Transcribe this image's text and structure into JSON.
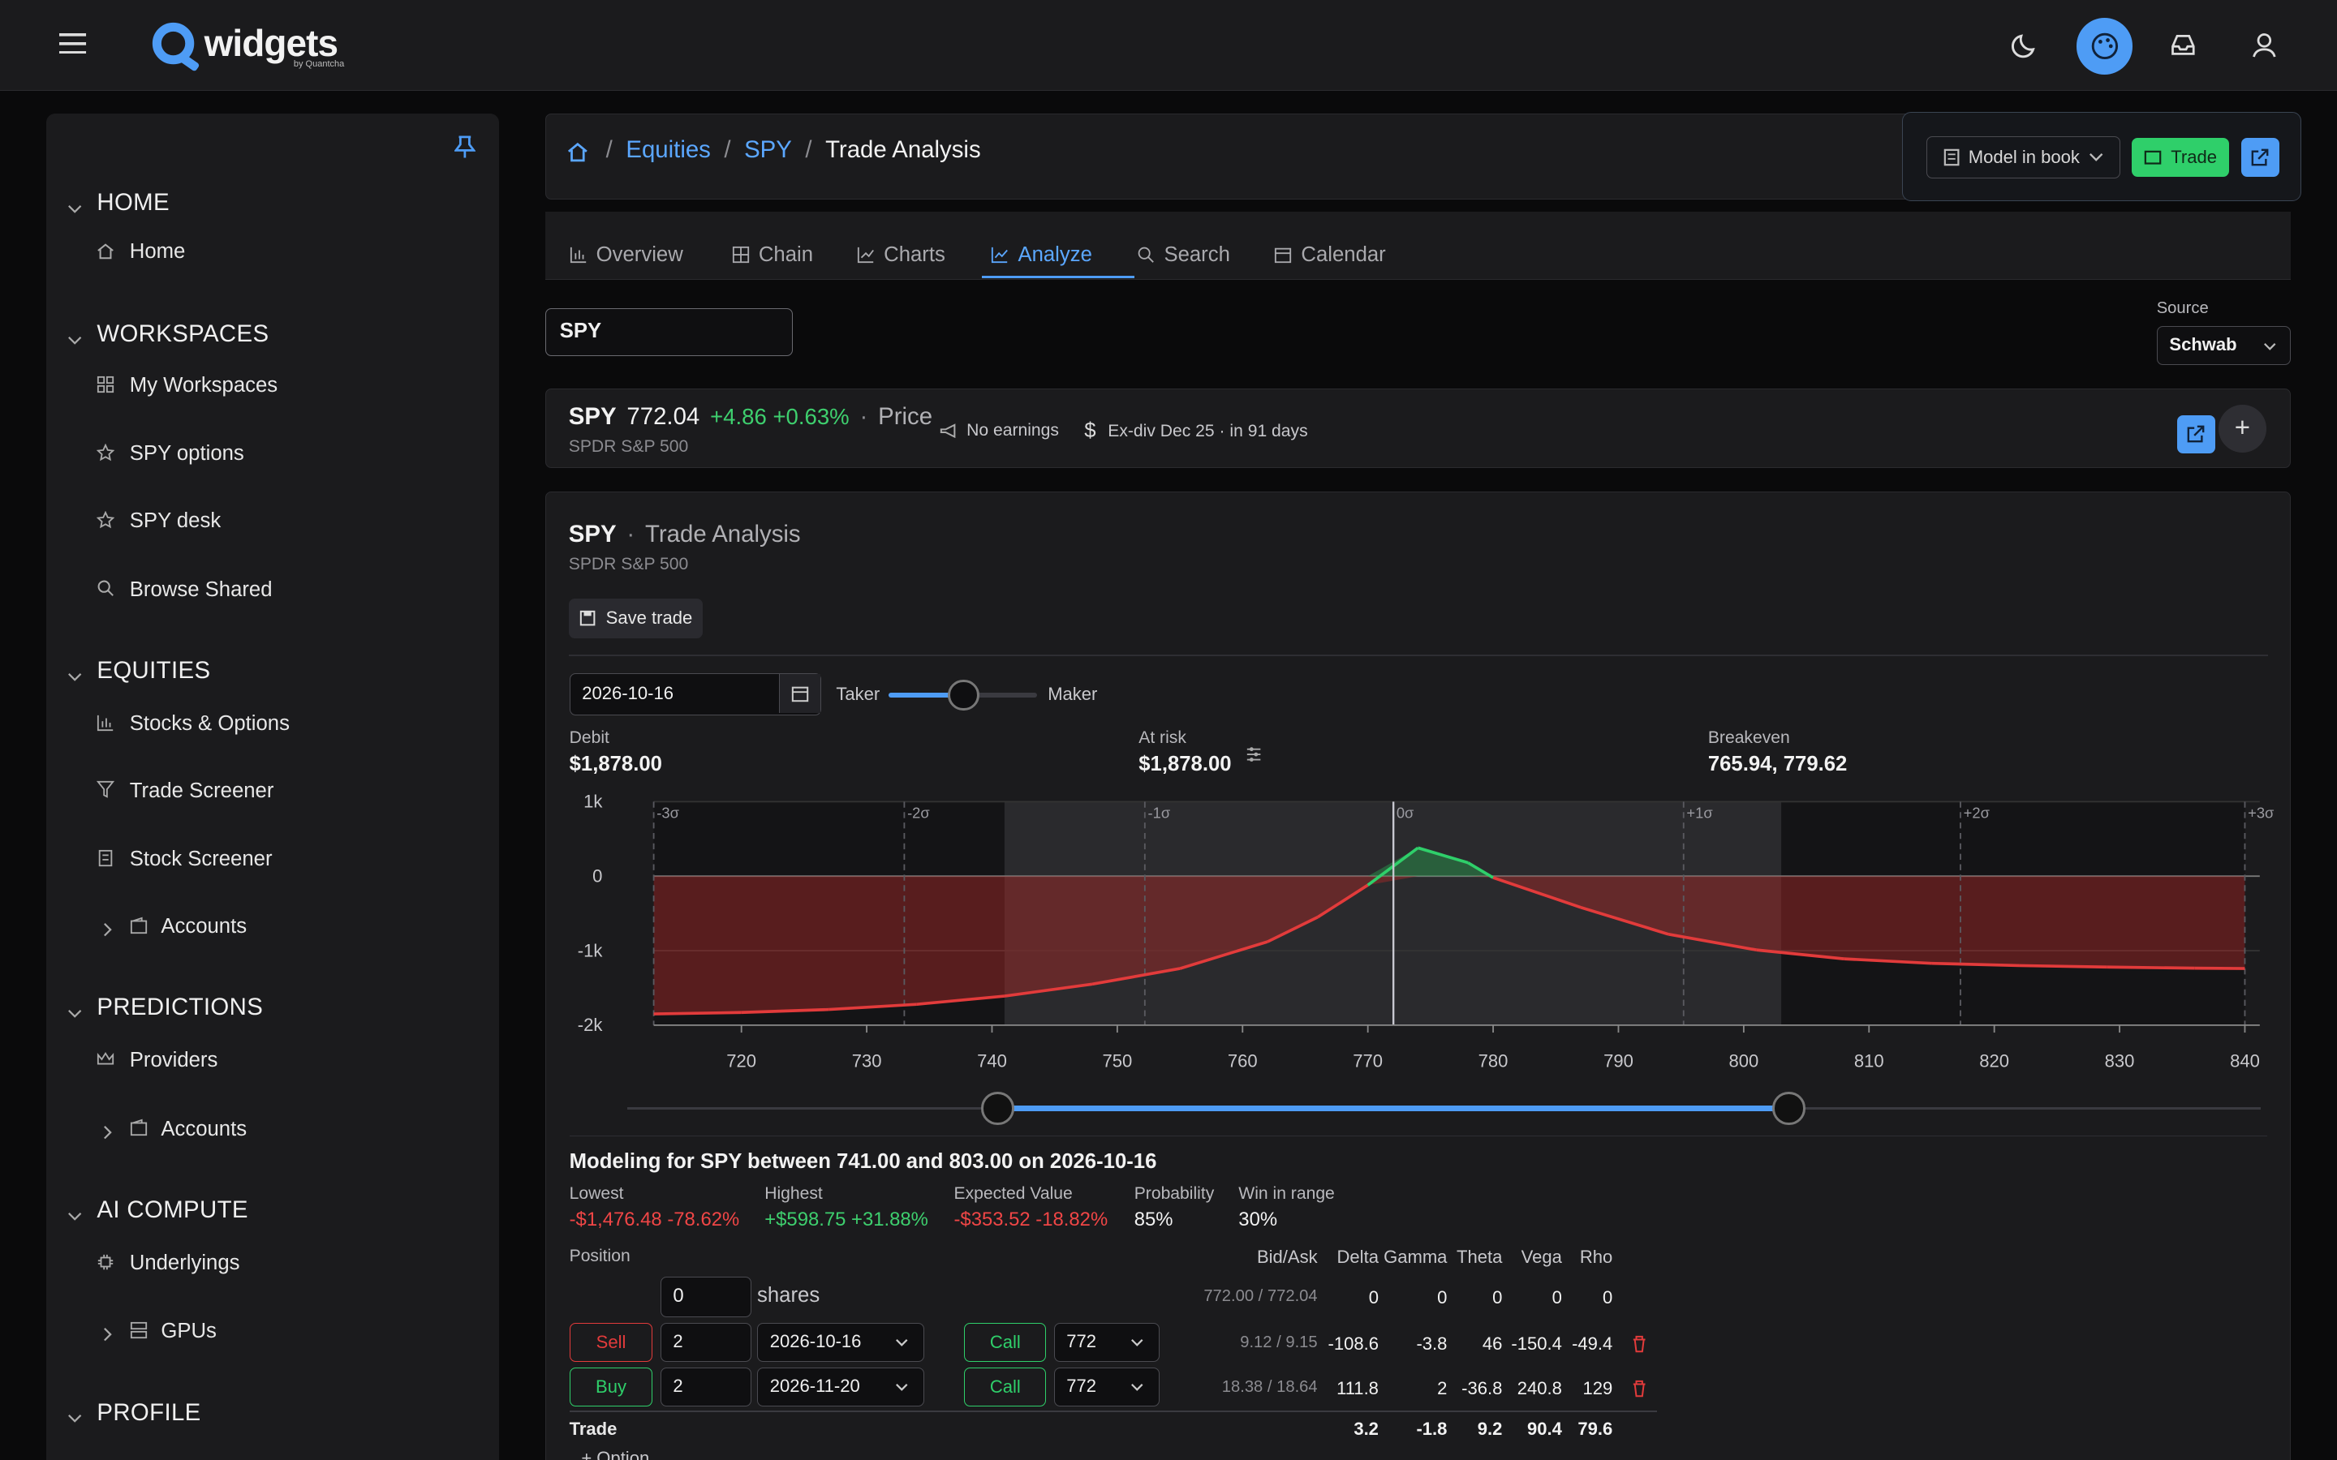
{
  "brand": {
    "name": "widgets",
    "sub": "by Quantcha",
    "accent": "#4e9cf5"
  },
  "sidebar": {
    "sections": [
      {
        "label": "HOME",
        "items": [
          {
            "label": "Home",
            "icon": "home-icon"
          }
        ]
      },
      {
        "label": "WORKSPACES",
        "items": [
          {
            "label": "My Workspaces",
            "icon": "grid-icon"
          },
          {
            "label": "SPY options",
            "icon": "star-icon"
          },
          {
            "label": "SPY desk",
            "icon": "star-icon"
          },
          {
            "label": "Browse Shared",
            "icon": "search-icon"
          }
        ]
      },
      {
        "label": "EQUITIES",
        "items": [
          {
            "label": "Stocks & Options",
            "icon": "bar-chart-icon"
          },
          {
            "label": "Trade Screener",
            "icon": "filter-icon"
          },
          {
            "label": "Stock Screener",
            "icon": "building-icon"
          },
          {
            "label": "Accounts",
            "icon": "wallet-icon"
          }
        ]
      },
      {
        "label": "PREDICTIONS",
        "items": [
          {
            "label": "Providers",
            "icon": "crown-icon"
          },
          {
            "label": "Accounts",
            "icon": "wallet-icon"
          }
        ]
      },
      {
        "label": "AI COMPUTE",
        "items": [
          {
            "label": "Underlyings",
            "icon": "chip-icon"
          },
          {
            "label": "GPUs",
            "icon": "server-icon"
          }
        ]
      },
      {
        "label": "PROFILE",
        "items": []
      }
    ]
  },
  "breadcrumb": {
    "items": [
      "Equities",
      "SPY",
      "Trade Analysis"
    ]
  },
  "actions": {
    "model_label": "Model in book",
    "trade_label": "Trade"
  },
  "tabs": [
    "Overview",
    "Chain",
    "Charts",
    "Analyze",
    "Search",
    "Calendar"
  ],
  "active_tab": "Analyze",
  "search": {
    "value": "SPY"
  },
  "source": {
    "label": "Source",
    "value": "Schwab"
  },
  "quote": {
    "symbol": "SPY",
    "price": "772.04",
    "change": "+4.86 +0.63%",
    "dot": "·",
    "price_label": "Price",
    "name": "SPDR S&P 500",
    "earnings": "No earnings",
    "exdiv": "Ex-div Dec 25 · in 91 days"
  },
  "analysis": {
    "symbol": "SPY",
    "dot": "·",
    "title": "Trade Analysis",
    "name": "SPDR S&P 500",
    "save_label": "Save trade",
    "date": "2026-10-16",
    "taker": "Taker",
    "maker": "Maker",
    "taker_maker_level": 0.5
  },
  "metrics": {
    "debit_label": "Debit",
    "debit": "$1,878.00",
    "risk_label": "At risk",
    "risk": "$1,878.00",
    "breakeven_label": "Breakeven",
    "breakeven": "765.94, 779.62"
  },
  "chart_data": {
    "type": "line",
    "x_ticks": [
      720,
      730,
      740,
      750,
      760,
      770,
      780,
      790,
      800,
      810,
      820,
      830,
      840
    ],
    "y_ticks": [
      "1k",
      "0",
      "-1k",
      "-2k"
    ],
    "y_tick_values": [
      1000,
      0,
      -1000,
      -2000
    ],
    "xlim": [
      712,
      840
    ],
    "ylim": [
      -2000,
      1000
    ],
    "sigma_labels": [
      {
        "label": "-3σ",
        "x": 713
      },
      {
        "label": "-2σ",
        "x": 733
      },
      {
        "label": "-1σ",
        "x": 752.2
      },
      {
        "label": "0σ",
        "x": 772.04
      },
      {
        "label": "+1σ",
        "x": 795.2
      },
      {
        "label": "+2σ",
        "x": 817.3
      },
      {
        "label": "+3σ",
        "x": 840
      }
    ],
    "range": [
      741,
      803
    ],
    "current_price": 772.04,
    "series": [
      {
        "x": [
          713,
          720,
          727,
          734,
          741,
          748,
          755,
          762,
          766,
          770,
          774,
          778,
          780,
          787,
          794,
          801,
          808,
          815,
          822,
          829,
          836,
          840
        ],
        "values": [
          -1850,
          -1830,
          -1790,
          -1720,
          -1610,
          -1450,
          -1240,
          -880,
          -550,
          -120,
          380,
          180,
          -20,
          -420,
          -780,
          -990,
          -1110,
          -1170,
          -1200,
          -1220,
          -1235,
          -1240
        ]
      }
    ]
  },
  "range_slider": {
    "low": 741,
    "high": 803
  },
  "modeling": {
    "title": "Modeling for SPY between 741.00 and 803.00 on 2026-10-16",
    "lowest_label": "Lowest",
    "lowest": "-$1,476.48 -78.62%",
    "highest_label": "Highest",
    "highest": "+$598.75 +31.88%",
    "ev_label": "Expected Value",
    "ev": "-$353.52 -18.82%",
    "prob_label": "Probability",
    "prob": "85%",
    "win_label": "Win in range",
    "win": "30%"
  },
  "positions": {
    "position_label": "Position",
    "headers": [
      "Bid/Ask",
      "Delta",
      "Gamma",
      "Theta",
      "Vega",
      "Rho"
    ],
    "shares": {
      "qty": "0",
      "unit": "shares",
      "bidask": "772.00 / 772.04",
      "greeks": [
        "0",
        "0",
        "0",
        "0",
        "0"
      ]
    },
    "legs": [
      {
        "side": "Sell",
        "qty": "2",
        "exp": "2026-10-16",
        "type": "Call",
        "strike": "772",
        "bidask": "9.12 / 9.15",
        "greeks": [
          "-108.6",
          "-3.8",
          "46",
          "-150.4",
          "-49.4"
        ]
      },
      {
        "side": "Buy",
        "qty": "2",
        "exp": "2026-11-20",
        "type": "Call",
        "strike": "772",
        "bidask": "18.38 / 18.64",
        "greeks": [
          "111.8",
          "2",
          "-36.8",
          "240.8",
          "129"
        ]
      }
    ],
    "trade": {
      "label": "Trade",
      "greeks": [
        "3.2",
        "-1.8",
        "9.2",
        "90.4",
        "79.6"
      ]
    },
    "add_option": "+ Option"
  }
}
